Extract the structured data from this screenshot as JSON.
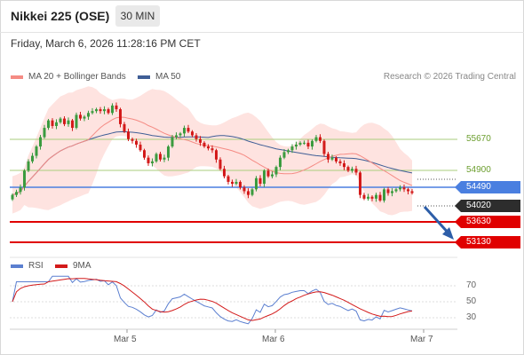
{
  "header": {
    "title": "Nikkei 225 (OSE)",
    "timeframe": "30 MIN",
    "timestamp": "Friday, March 6, 2026 11:28:16 PM CET"
  },
  "legend": {
    "ma20_bb": "MA 20 + Bollinger Bands",
    "ma50": "MA 50",
    "credit": "Research © 2026 Trading Central",
    "rsi": "RSI",
    "rsi_ma": "9MA"
  },
  "colors": {
    "up": "#3b9b3f",
    "down": "#d31a1a",
    "bands": "#fdd9d6",
    "ma20": "#f58b84",
    "ma50": "#3f5e96",
    "resistance": "#a9cd7d",
    "pivot": "#4a7fe0",
    "support": "#e00000",
    "current": "#2d2d2d"
  },
  "levels": {
    "r2": "55670",
    "r1": "54900",
    "pivot": "54490",
    "current": "54020",
    "s1": "53630",
    "s2": "53130"
  },
  "rsi_axis": [
    "70",
    "50",
    "30"
  ],
  "x_axis": [
    "Mar 5",
    "Mar 6",
    "Mar 7"
  ],
  "chart_data": {
    "type": "candlestick",
    "y_range": [
      52900,
      56950
    ],
    "close": [
      54100,
      54180,
      54300,
      54750,
      55000,
      55150,
      55400,
      55650,
      55900,
      56100,
      55950,
      56050,
      56150,
      56000,
      56100,
      55900,
      56250,
      56150,
      56200,
      56300,
      56350,
      56400,
      56350,
      56400,
      56300,
      56500,
      56400,
      56000,
      55800,
      55600,
      55550,
      55450,
      55300,
      55100,
      54950,
      55000,
      55200,
      55050,
      55100,
      55400,
      55650,
      55700,
      55750,
      55900,
      55800,
      55700,
      55600,
      55500,
      55400,
      55350,
      55300,
      55050,
      54800,
      54600,
      54450,
      54400,
      54450,
      54300,
      54200,
      54100,
      54250,
      54550,
      54400,
      54750,
      54600,
      54650,
      54850,
      55100,
      55250,
      55300,
      55400,
      55450,
      55500,
      55500,
      55400,
      55550,
      55650,
      55550,
      55200,
      55050,
      55100,
      55000,
      54950,
      54850,
      54750,
      54800,
      54700,
      54100,
      54000,
      54050,
      54000,
      54100,
      53950,
      54250,
      54150,
      54200,
      54250,
      54300,
      54250,
      54200,
      54150
    ]
  }
}
